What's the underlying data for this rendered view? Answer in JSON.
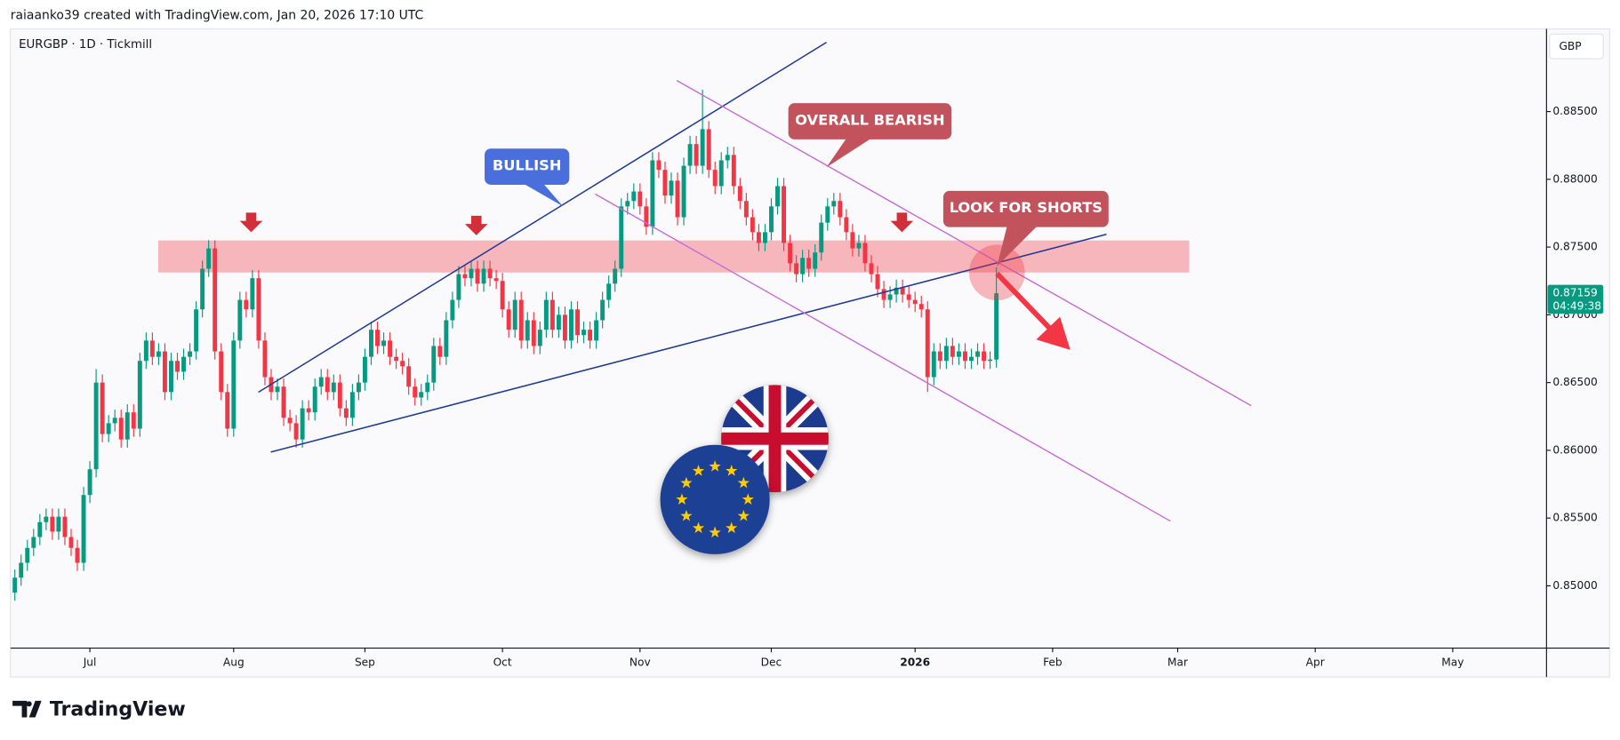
{
  "header": {
    "attribution": "raiaanko39 created with TradingView.com, Jan 20, 2026 17:10 UTC"
  },
  "footer": {
    "logo": "TradingView"
  },
  "chart_data": {
    "type": "candlestick",
    "title": "EURGBP · 1D · Tickmill",
    "y_axis_label": "GBP",
    "countdown": "04:49:38",
    "annotations": [
      "BULLISH",
      "OVERALL BEARISH",
      "LOOK FOR SHORTS"
    ],
    "up_color": "#089981",
    "down_color": "#f23645",
    "grid": false,
    "xlim": [
      -0.7,
      245
    ],
    "xticks": [
      {
        "value": 12,
        "label": "Jul"
      },
      {
        "value": 35,
        "label": "Aug"
      },
      {
        "value": 56,
        "label": "Sep"
      },
      {
        "value": 78,
        "label": "Oct"
      },
      {
        "value": 100,
        "label": "Nov"
      },
      {
        "value": 121,
        "label": "Dec"
      },
      {
        "value": 144,
        "label": "2026"
      },
      {
        "value": 166,
        "label": "Feb"
      },
      {
        "value": 186,
        "label": "Mar"
      },
      {
        "value": 208,
        "label": "Apr"
      },
      {
        "value": 230,
        "label": "May"
      }
    ],
    "ylim": [
      0.8454,
      0.8911
    ],
    "yticks": [
      {
        "value": 0.85,
        "label": "0.85000"
      },
      {
        "value": 0.855,
        "label": "0.85500"
      },
      {
        "value": 0.86,
        "label": "0.86000"
      },
      {
        "value": 0.865,
        "label": "0.86500"
      },
      {
        "value": 0.87,
        "label": "0.87000"
      },
      {
        "value": 0.875,
        "label": "0.87500"
      },
      {
        "value": 0.88,
        "label": "0.88000"
      },
      {
        "value": 0.885,
        "label": "0.88500"
      }
    ],
    "candles": [
      [
        0.8495,
        0.8512,
        0.8489,
        0.8506
      ],
      [
        0.8506,
        0.8523,
        0.85,
        0.8517
      ],
      [
        0.8517,
        0.8534,
        0.8511,
        0.8528
      ],
      [
        0.8528,
        0.8542,
        0.8522,
        0.8536
      ],
      [
        0.8536,
        0.8553,
        0.853,
        0.8547
      ],
      [
        0.8547,
        0.8557,
        0.8541,
        0.8551
      ],
      [
        0.8551,
        0.8557,
        0.8534,
        0.854
      ],
      [
        0.854,
        0.8557,
        0.8534,
        0.8551
      ],
      [
        0.8551,
        0.8557,
        0.853,
        0.8536
      ],
      [
        0.8536,
        0.8542,
        0.8522,
        0.8528
      ],
      [
        0.8528,
        0.8534,
        0.8511,
        0.8517
      ],
      [
        0.8517,
        0.8573,
        0.8511,
        0.8567
      ],
      [
        0.8567,
        0.8592,
        0.8561,
        0.8586
      ],
      [
        0.8586,
        0.866,
        0.858,
        0.865
      ],
      [
        0.865,
        0.8656,
        0.8606,
        0.8612
      ],
      [
        0.8612,
        0.8626,
        0.8606,
        0.862
      ],
      [
        0.862,
        0.863,
        0.8614,
        0.8624
      ],
      [
        0.8624,
        0.863,
        0.8602,
        0.8608
      ],
      [
        0.8608,
        0.8634,
        0.8602,
        0.8628
      ],
      [
        0.8628,
        0.8634,
        0.861,
        0.8616
      ],
      [
        0.8616,
        0.8672,
        0.861,
        0.8666
      ],
      [
        0.8666,
        0.8687,
        0.866,
        0.8681
      ],
      [
        0.8681,
        0.8687,
        0.8663,
        0.8669
      ],
      [
        0.8669,
        0.8679,
        0.8663,
        0.8673
      ],
      [
        0.8673,
        0.8679,
        0.8637,
        0.8643
      ],
      [
        0.8643,
        0.8672,
        0.8637,
        0.8666
      ],
      [
        0.8666,
        0.8672,
        0.8652,
        0.8658
      ],
      [
        0.8658,
        0.8675,
        0.8652,
        0.8669
      ],
      [
        0.8669,
        0.8679,
        0.8663,
        0.8673
      ],
      [
        0.8673,
        0.871,
        0.8667,
        0.8704
      ],
      [
        0.8704,
        0.874,
        0.8698,
        0.8734
      ],
      [
        0.8734,
        0.8755,
        0.8728,
        0.8749
      ],
      [
        0.8749,
        0.8755,
        0.8667,
        0.8673
      ],
      [
        0.8673,
        0.8679,
        0.8637,
        0.8643
      ],
      [
        0.8643,
        0.8649,
        0.861,
        0.8616
      ],
      [
        0.8616,
        0.8687,
        0.861,
        0.8681
      ],
      [
        0.8681,
        0.8717,
        0.8675,
        0.8711
      ],
      [
        0.8711,
        0.8717,
        0.8698,
        0.8704
      ],
      [
        0.8704,
        0.8733,
        0.8698,
        0.8727
      ],
      [
        0.8727,
        0.8733,
        0.8675,
        0.8681
      ],
      [
        0.8681,
        0.8687,
        0.8648,
        0.8654
      ],
      [
        0.8654,
        0.866,
        0.8637,
        0.8643
      ],
      [
        0.8643,
        0.8653,
        0.8637,
        0.8647
      ],
      [
        0.8647,
        0.8653,
        0.8618,
        0.8624
      ],
      [
        0.8624,
        0.863,
        0.8614,
        0.862
      ],
      [
        0.862,
        0.8626,
        0.8602,
        0.8608
      ],
      [
        0.8608,
        0.8637,
        0.8602,
        0.8631
      ],
      [
        0.8631,
        0.8637,
        0.8622,
        0.8628
      ],
      [
        0.8628,
        0.8653,
        0.8622,
        0.8647
      ],
      [
        0.8647,
        0.866,
        0.8641,
        0.8654
      ],
      [
        0.8654,
        0.866,
        0.8637,
        0.8643
      ],
      [
        0.8643,
        0.8656,
        0.8637,
        0.865
      ],
      [
        0.865,
        0.8656,
        0.8625,
        0.8631
      ],
      [
        0.8631,
        0.8637,
        0.8618,
        0.8624
      ],
      [
        0.8624,
        0.8649,
        0.8618,
        0.8643
      ],
      [
        0.8643,
        0.8656,
        0.8637,
        0.865
      ],
      [
        0.865,
        0.8675,
        0.8644,
        0.8669
      ],
      [
        0.8669,
        0.8695,
        0.8663,
        0.8689
      ],
      [
        0.8689,
        0.8695,
        0.8671,
        0.8677
      ],
      [
        0.8677,
        0.8687,
        0.8671,
        0.8681
      ],
      [
        0.8681,
        0.8687,
        0.8663,
        0.8669
      ],
      [
        0.8669,
        0.8675,
        0.866,
        0.8666
      ],
      [
        0.8666,
        0.8672,
        0.8656,
        0.8662
      ],
      [
        0.8662,
        0.8668,
        0.8641,
        0.8647
      ],
      [
        0.8647,
        0.8653,
        0.8633,
        0.8639
      ],
      [
        0.8639,
        0.8649,
        0.8633,
        0.8643
      ],
      [
        0.8643,
        0.8656,
        0.8637,
        0.865
      ],
      [
        0.865,
        0.8683,
        0.8644,
        0.8677
      ],
      [
        0.8677,
        0.8683,
        0.8663,
        0.8669
      ],
      [
        0.8669,
        0.8702,
        0.8663,
        0.8696
      ],
      [
        0.8696,
        0.8717,
        0.869,
        0.8711
      ],
      [
        0.8711,
        0.8736,
        0.8705,
        0.873
      ],
      [
        0.873,
        0.8736,
        0.8721,
        0.8727
      ],
      [
        0.8727,
        0.874,
        0.8721,
        0.8734
      ],
      [
        0.8734,
        0.874,
        0.8717,
        0.8723
      ],
      [
        0.8723,
        0.874,
        0.8717,
        0.8734
      ],
      [
        0.8734,
        0.874,
        0.8721,
        0.8727
      ],
      [
        0.8727,
        0.8733,
        0.8719,
        0.8725
      ],
      [
        0.8725,
        0.8731,
        0.8698,
        0.8704
      ],
      [
        0.8704,
        0.871,
        0.8683,
        0.8689
      ],
      [
        0.8689,
        0.8717,
        0.8683,
        0.8711
      ],
      [
        0.8711,
        0.8717,
        0.8675,
        0.8681
      ],
      [
        0.8681,
        0.8702,
        0.8675,
        0.8696
      ],
      [
        0.8696,
        0.8702,
        0.8671,
        0.8677
      ],
      [
        0.8677,
        0.8695,
        0.8671,
        0.8689
      ],
      [
        0.8689,
        0.8717,
        0.8683,
        0.8711
      ],
      [
        0.8711,
        0.8717,
        0.8683,
        0.8689
      ],
      [
        0.8689,
        0.8706,
        0.8683,
        0.87
      ],
      [
        0.87,
        0.8706,
        0.8675,
        0.8681
      ],
      [
        0.8681,
        0.871,
        0.8675,
        0.8704
      ],
      [
        0.8704,
        0.871,
        0.8679,
        0.8685
      ],
      [
        0.8685,
        0.8695,
        0.8679,
        0.8689
      ],
      [
        0.8689,
        0.8695,
        0.8675,
        0.8681
      ],
      [
        0.8681,
        0.8702,
        0.8675,
        0.8696
      ],
      [
        0.8696,
        0.8717,
        0.869,
        0.8711
      ],
      [
        0.8711,
        0.8729,
        0.8705,
        0.8723
      ],
      [
        0.8723,
        0.874,
        0.8717,
        0.8734
      ],
      [
        0.8734,
        0.8786,
        0.8728,
        0.878
      ],
      [
        0.878,
        0.879,
        0.8774,
        0.8784
      ],
      [
        0.8784,
        0.8797,
        0.8778,
        0.8791
      ],
      [
        0.8791,
        0.8797,
        0.8774,
        0.878
      ],
      [
        0.878,
        0.8786,
        0.8759,
        0.8765
      ],
      [
        0.8765,
        0.882,
        0.8759,
        0.8814
      ],
      [
        0.8814,
        0.882,
        0.8801,
        0.8807
      ],
      [
        0.8807,
        0.8813,
        0.8782,
        0.8788
      ],
      [
        0.8788,
        0.8805,
        0.8782,
        0.8799
      ],
      [
        0.8799,
        0.8805,
        0.8766,
        0.8772
      ],
      [
        0.8772,
        0.8816,
        0.8766,
        0.881
      ],
      [
        0.881,
        0.8832,
        0.8804,
        0.8826
      ],
      [
        0.8826,
        0.8832,
        0.8804,
        0.881
      ],
      [
        0.881,
        0.8866,
        0.8804,
        0.8837
      ],
      [
        0.8837,
        0.8843,
        0.8801,
        0.8807
      ],
      [
        0.8807,
        0.8813,
        0.8789,
        0.8795
      ],
      [
        0.8795,
        0.882,
        0.8789,
        0.8814
      ],
      [
        0.8814,
        0.8824,
        0.8808,
        0.8818
      ],
      [
        0.8818,
        0.8824,
        0.8789,
        0.8795
      ],
      [
        0.8795,
        0.8801,
        0.8778,
        0.8784
      ],
      [
        0.8784,
        0.879,
        0.8766,
        0.8772
      ],
      [
        0.8772,
        0.8778,
        0.8755,
        0.8761
      ],
      [
        0.8761,
        0.8767,
        0.8747,
        0.8753
      ],
      [
        0.8753,
        0.8767,
        0.8747,
        0.8761
      ],
      [
        0.8761,
        0.8786,
        0.8755,
        0.878
      ],
      [
        0.878,
        0.8801,
        0.8774,
        0.8795
      ],
      [
        0.8795,
        0.8801,
        0.8747,
        0.8753
      ],
      [
        0.8753,
        0.8759,
        0.8732,
        0.8738
      ],
      [
        0.8738,
        0.8744,
        0.8724,
        0.873
      ],
      [
        0.873,
        0.8748,
        0.8724,
        0.8742
      ],
      [
        0.8742,
        0.8748,
        0.8728,
        0.8734
      ],
      [
        0.8734,
        0.8752,
        0.8728,
        0.8746
      ],
      [
        0.8746,
        0.8774,
        0.874,
        0.8768
      ],
      [
        0.8768,
        0.8786,
        0.8762,
        0.878
      ],
      [
        0.878,
        0.879,
        0.8774,
        0.8784
      ],
      [
        0.8784,
        0.879,
        0.8766,
        0.8772
      ],
      [
        0.8772,
        0.8778,
        0.8755,
        0.8761
      ],
      [
        0.8761,
        0.8767,
        0.8743,
        0.8749
      ],
      [
        0.8749,
        0.8759,
        0.8743,
        0.8753
      ],
      [
        0.8753,
        0.8759,
        0.8732,
        0.8738
      ],
      [
        0.8738,
        0.8744,
        0.8724,
        0.873
      ],
      [
        0.873,
        0.8736,
        0.8713,
        0.8719
      ],
      [
        0.8719,
        0.8725,
        0.8705,
        0.8711
      ],
      [
        0.8711,
        0.8721,
        0.8705,
        0.8715
      ],
      [
        0.8715,
        0.8726,
        0.8709,
        0.872
      ],
      [
        0.872,
        0.8726,
        0.8709,
        0.8715
      ],
      [
        0.8715,
        0.8721,
        0.8705,
        0.8711
      ],
      [
        0.8711,
        0.8717,
        0.8702,
        0.8708
      ],
      [
        0.8708,
        0.8714,
        0.8698,
        0.8704
      ],
      [
        0.8704,
        0.871,
        0.8643,
        0.8654
      ],
      [
        0.8654,
        0.8679,
        0.8648,
        0.8673
      ],
      [
        0.8673,
        0.8679,
        0.866,
        0.8666
      ],
      [
        0.8666,
        0.8683,
        0.866,
        0.8677
      ],
      [
        0.8677,
        0.8683,
        0.8663,
        0.8669
      ],
      [
        0.8669,
        0.8679,
        0.8663,
        0.8673
      ],
      [
        0.8673,
        0.8679,
        0.866,
        0.8666
      ],
      [
        0.8666,
        0.8675,
        0.866,
        0.8669
      ],
      [
        0.8669,
        0.8679,
        0.8663,
        0.8673
      ],
      [
        0.8673,
        0.8679,
        0.866,
        0.8666
      ],
      [
        0.8666,
        0.8673,
        0.866,
        0.8667
      ],
      [
        0.8667,
        0.8735,
        0.8661,
        0.87159
      ]
    ]
  }
}
